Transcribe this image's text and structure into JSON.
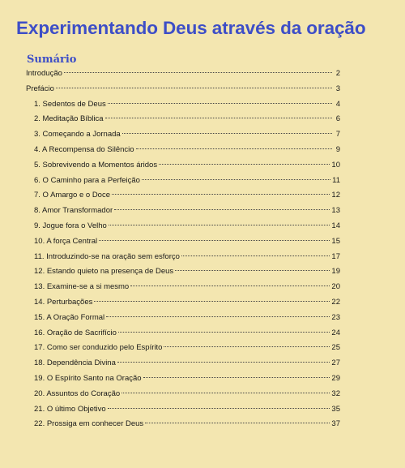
{
  "title": "Experimentando Deus através da oração",
  "toc_heading": "Sumário",
  "entries": [
    {
      "label": "Introdução",
      "page": "2",
      "level": 1
    },
    {
      "label": "Prefácio",
      "page": "3",
      "level": 1
    },
    {
      "label": "1. Sedentos de Deus",
      "page": "4",
      "level": 2
    },
    {
      "label": "2. Meditação Bíblica",
      "page": "6",
      "level": 2
    },
    {
      "label": "3. Começando a Jornada",
      "page": "7",
      "level": 2
    },
    {
      "label": "4. A Recompensa do Silêncio",
      "page": "9",
      "level": 2
    },
    {
      "label": "5. Sobrevivendo a Momentos áridos",
      "page": "10",
      "level": 2
    },
    {
      "label": "6. O Caminho para a Perfeição",
      "page": "11",
      "level": 2
    },
    {
      "label": "7. O Amargo e o Doce",
      "page": "12",
      "level": 2
    },
    {
      "label": "8. Amor Transformador",
      "page": "13",
      "level": 2
    },
    {
      "label": "9. Jogue fora o Velho",
      "page": "14",
      "level": 2
    },
    {
      "label": "10. A força Central",
      "page": "15",
      "level": 2
    },
    {
      "label": "11. Introduzindo-se na oração sem esforço",
      "page": "17",
      "level": 2
    },
    {
      "label": "12. Estando quieto na presença de Deus",
      "page": "19",
      "level": 2
    },
    {
      "label": "13. Examine-se a si mesmo",
      "page": "20",
      "level": 2
    },
    {
      "label": "14. Perturbações",
      "page": "22",
      "level": 2
    },
    {
      "label": "15. A Oração Formal",
      "page": "23",
      "level": 2
    },
    {
      "label": "16. Oração de Sacrifício",
      "page": "24",
      "level": 2
    },
    {
      "label": "17. Como ser conduzido pelo Espírito",
      "page": "25",
      "level": 2
    },
    {
      "label": "18. Dependência Divina",
      "page": "27",
      "level": 2
    },
    {
      "label": "19. O Espírito Santo na Oração",
      "page": "29",
      "level": 2
    },
    {
      "label": "20. Assuntos do Coração",
      "page": "32",
      "level": 2
    },
    {
      "label": "21. O último Objetivo",
      "page": "35",
      "level": 2
    },
    {
      "label": "22. Prossiga em conhecer Deus",
      "page": "37",
      "level": 2
    }
  ]
}
